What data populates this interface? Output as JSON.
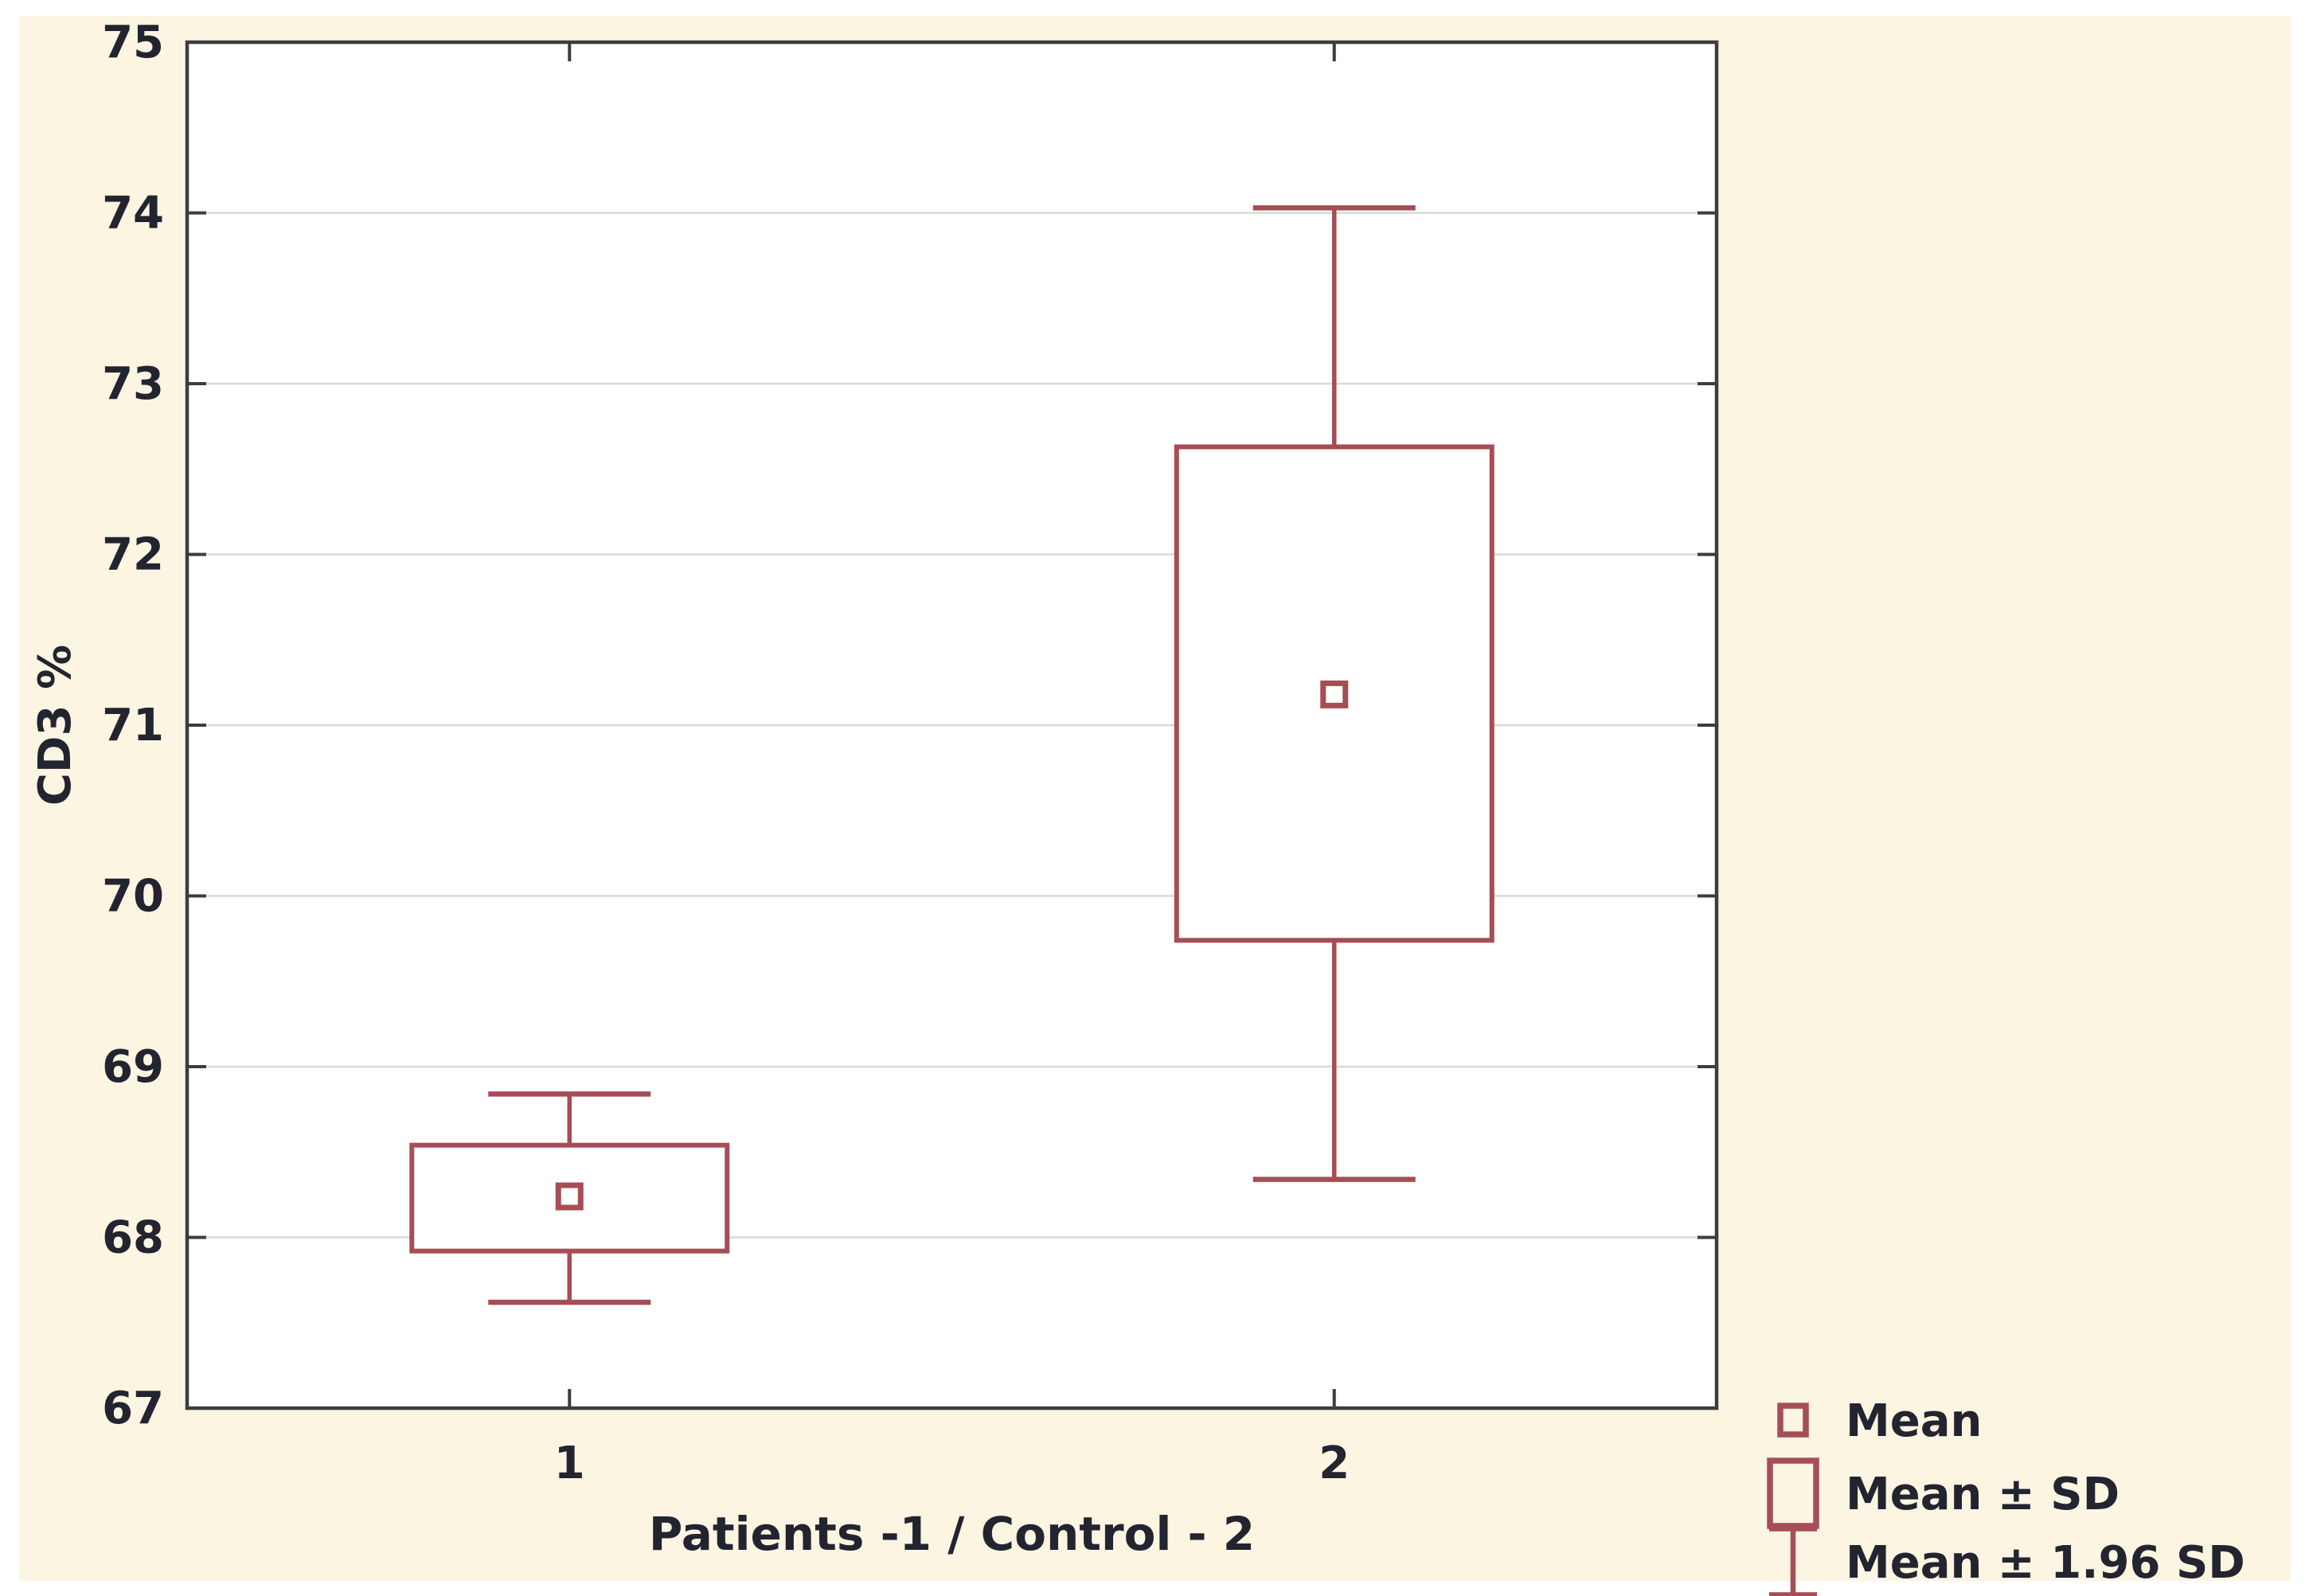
{
  "figure": {
    "background": "#ffffff",
    "panel_background": "#fbf5e2"
  },
  "chart_data": {
    "type": "box",
    "title": "",
    "xlabel": "Patients -1 / Control - 2",
    "ylabel": "CD3 %",
    "grid": true,
    "legend_position": "bottom-right",
    "y_axis": {
      "min": 67,
      "max": 75,
      "tick_step": 1,
      "tick_labels": [
        "67",
        "68",
        "69",
        "70",
        "71",
        "72",
        "73",
        "74",
        "75"
      ]
    },
    "x_axis": {
      "tick_labels": [
        "1",
        "2"
      ]
    },
    "groups": [
      {
        "category": "1",
        "name": "Patients",
        "mean": 68.24,
        "sd_low": 67.92,
        "sd_high": 68.54,
        "whisker_low": 67.62,
        "whisker_high": 68.84
      },
      {
        "category": "2",
        "name": "Control",
        "mean": 71.18,
        "sd_low": 69.74,
        "sd_high": 72.63,
        "whisker_low": 68.34,
        "whisker_high": 74.03
      }
    ],
    "legend": [
      {
        "label": "Mean",
        "glyph": "mean-square"
      },
      {
        "label": "Mean ± SD",
        "glyph": "sd-box"
      },
      {
        "label": "Mean ± 1.96 SD",
        "glyph": "whisker-bar"
      }
    ],
    "colors": {
      "series": "#a64d55",
      "frame": "#3d3d3d",
      "grid": "#d9d9d6",
      "text": "#222430",
      "plot_bg": "#ffffff"
    }
  }
}
